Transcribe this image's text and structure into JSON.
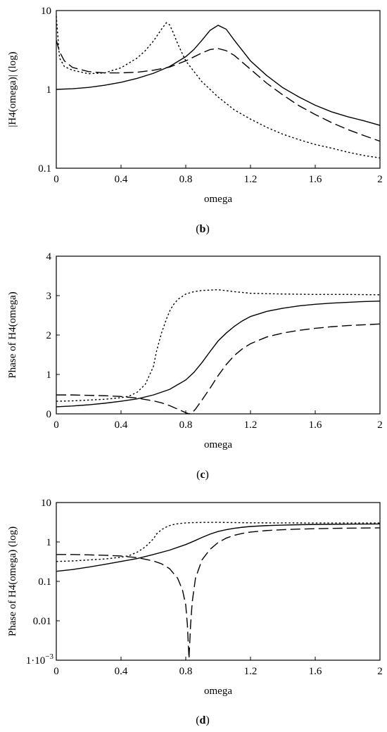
{
  "chart_data": [
    {
      "type": "line",
      "panel_label": "(b)",
      "xlabel": "omega",
      "ylabel": "|H4(omega)| (log)",
      "xlim": [
        0,
        2
      ],
      "ylim": [
        0.1,
        10
      ],
      "yscale": "log",
      "grid": false,
      "xticks": [
        0,
        0.4,
        0.8,
        1.2,
        1.6,
        2
      ],
      "xtick_labels": [
        "0",
        "0.4",
        "0.8",
        "1.2",
        "1.6",
        "2"
      ],
      "yticks": [
        0.1,
        1,
        10
      ],
      "ytick_labels": [
        "0.1",
        "1",
        "10"
      ],
      "series": [
        {
          "style": "solid",
          "x": [
            0,
            0.1,
            0.2,
            0.3,
            0.4,
            0.5,
            0.6,
            0.7,
            0.8,
            0.85,
            0.9,
            0.95,
            1.0,
            1.05,
            1.1,
            1.2,
            1.3,
            1.4,
            1.5,
            1.6,
            1.7,
            1.8,
            1.9,
            2.0
          ],
          "y": [
            1.0,
            1.02,
            1.06,
            1.13,
            1.23,
            1.38,
            1.6,
            1.95,
            2.6,
            3.2,
            4.2,
            5.6,
            6.5,
            5.8,
            4.2,
            2.3,
            1.5,
            1.05,
            0.8,
            0.63,
            0.52,
            0.45,
            0.4,
            0.35
          ]
        },
        {
          "style": "dashed",
          "x": [
            0,
            0.02,
            0.05,
            0.1,
            0.2,
            0.3,
            0.4,
            0.5,
            0.6,
            0.7,
            0.8,
            0.9,
            0.95,
            1.0,
            1.05,
            1.1,
            1.2,
            1.3,
            1.4,
            1.5,
            1.6,
            1.7,
            1.8,
            1.9,
            2.0
          ],
          "y": [
            4.2,
            3.0,
            2.3,
            1.9,
            1.68,
            1.62,
            1.62,
            1.65,
            1.75,
            1.92,
            2.3,
            2.9,
            3.2,
            3.3,
            3.1,
            2.7,
            1.8,
            1.2,
            0.85,
            0.62,
            0.48,
            0.38,
            0.31,
            0.26,
            0.22
          ]
        },
        {
          "style": "dotted",
          "x": [
            0,
            0.02,
            0.05,
            0.1,
            0.2,
            0.3,
            0.4,
            0.5,
            0.55,
            0.6,
            0.65,
            0.68,
            0.7,
            0.72,
            0.75,
            0.8,
            0.9,
            1.0,
            1.1,
            1.2,
            1.3,
            1.4,
            1.5,
            1.6,
            1.7,
            1.8,
            1.9,
            2.0
          ],
          "y": [
            8.5,
            2.5,
            1.95,
            1.75,
            1.58,
            1.62,
            1.88,
            2.5,
            3.1,
            4.1,
            5.8,
            7.0,
            6.6,
            5.4,
            3.8,
            2.3,
            1.25,
            0.8,
            0.55,
            0.42,
            0.33,
            0.27,
            0.23,
            0.2,
            0.18,
            0.16,
            0.145,
            0.135
          ]
        }
      ]
    },
    {
      "type": "line",
      "panel_label": "(c)",
      "xlabel": "omega",
      "ylabel": "Phase of H4(omega)",
      "xlim": [
        0,
        2
      ],
      "ylim": [
        0,
        4
      ],
      "yscale": "linear",
      "grid": false,
      "xticks": [
        0,
        0.4,
        0.8,
        1.2,
        1.6,
        2
      ],
      "xtick_labels": [
        "0",
        "0.4",
        "0.8",
        "1.2",
        "1.6",
        "2"
      ],
      "yticks": [
        0,
        1,
        2,
        3,
        4
      ],
      "ytick_labels": [
        "0",
        "1",
        "2",
        "3",
        "4"
      ],
      "series": [
        {
          "style": "solid",
          "x": [
            0,
            0.1,
            0.2,
            0.3,
            0.4,
            0.5,
            0.6,
            0.7,
            0.8,
            0.85,
            0.9,
            0.95,
            1.0,
            1.05,
            1.1,
            1.15,
            1.2,
            1.3,
            1.4,
            1.5,
            1.6,
            1.7,
            1.8,
            1.9,
            2.0
          ],
          "y": [
            0.18,
            0.2,
            0.23,
            0.27,
            0.32,
            0.38,
            0.48,
            0.62,
            0.86,
            1.05,
            1.3,
            1.58,
            1.85,
            2.05,
            2.22,
            2.36,
            2.47,
            2.6,
            2.68,
            2.74,
            2.78,
            2.81,
            2.83,
            2.85,
            2.86
          ]
        },
        {
          "style": "dashed",
          "x": [
            0,
            0.1,
            0.2,
            0.3,
            0.4,
            0.5,
            0.6,
            0.65,
            0.7,
            0.75,
            0.8,
            0.82,
            0.84,
            0.86,
            0.9,
            0.95,
            1.0,
            1.05,
            1.1,
            1.15,
            1.2,
            1.3,
            1.4,
            1.5,
            1.6,
            1.7,
            1.8,
            1.9,
            2.0
          ],
          "y": [
            0.48,
            0.48,
            0.47,
            0.46,
            0.44,
            0.4,
            0.33,
            0.28,
            0.21,
            0.12,
            0.03,
            0.0,
            0.03,
            0.12,
            0.35,
            0.65,
            0.97,
            1.25,
            1.48,
            1.65,
            1.78,
            1.95,
            2.05,
            2.12,
            2.17,
            2.21,
            2.24,
            2.26,
            2.28
          ]
        },
        {
          "style": "dotted",
          "x": [
            0,
            0.1,
            0.2,
            0.3,
            0.4,
            0.45,
            0.5,
            0.55,
            0.6,
            0.62,
            0.65,
            0.68,
            0.7,
            0.72,
            0.75,
            0.8,
            0.85,
            0.9,
            1.0,
            1.1,
            1.2,
            1.4,
            1.6,
            1.8,
            2.0
          ],
          "y": [
            0.32,
            0.33,
            0.35,
            0.37,
            0.41,
            0.45,
            0.55,
            0.75,
            1.2,
            1.6,
            2.05,
            2.4,
            2.6,
            2.75,
            2.9,
            3.04,
            3.1,
            3.13,
            3.15,
            3.1,
            3.06,
            3.04,
            3.03,
            3.03,
            3.02
          ]
        }
      ]
    },
    {
      "type": "line",
      "panel_label": "(d)",
      "xlabel": "omega",
      "ylabel": "Phase of H4(omega) (log)",
      "xlim": [
        0,
        2
      ],
      "ylim": [
        0.001,
        10
      ],
      "yscale": "log",
      "grid": false,
      "xticks": [
        0,
        0.4,
        0.8,
        1.2,
        1.6,
        2
      ],
      "xtick_labels": [
        "0",
        "0.4",
        "0.8",
        "1.2",
        "1.6",
        "2"
      ],
      "yticks": [
        0.001,
        0.01,
        0.1,
        1,
        10
      ],
      "ytick_labels": [
        "1·10",
        "0.01",
        "0.1",
        "1",
        "10"
      ],
      "ytick_min_exponent": "−3",
      "series": [
        {
          "style": "solid",
          "x": [
            0,
            0.1,
            0.2,
            0.3,
            0.4,
            0.5,
            0.6,
            0.7,
            0.8,
            0.85,
            0.9,
            0.95,
            1.0,
            1.05,
            1.1,
            1.15,
            1.2,
            1.3,
            1.4,
            1.5,
            1.6,
            1.7,
            1.8,
            1.9,
            2.0
          ],
          "y": [
            0.18,
            0.2,
            0.23,
            0.27,
            0.32,
            0.38,
            0.48,
            0.62,
            0.86,
            1.05,
            1.3,
            1.58,
            1.85,
            2.05,
            2.22,
            2.36,
            2.47,
            2.6,
            2.68,
            2.74,
            2.78,
            2.81,
            2.83,
            2.85,
            2.86
          ]
        },
        {
          "style": "dashed",
          "x": [
            0,
            0.1,
            0.2,
            0.3,
            0.4,
            0.5,
            0.6,
            0.65,
            0.7,
            0.75,
            0.78,
            0.8,
            0.81,
            0.82,
            0.83,
            0.84,
            0.86,
            0.9,
            0.95,
            1.0,
            1.05,
            1.1,
            1.15,
            1.2,
            1.3,
            1.4,
            1.5,
            1.6,
            1.7,
            1.8,
            1.9,
            2.0
          ],
          "y": [
            0.48,
            0.48,
            0.47,
            0.46,
            0.44,
            0.4,
            0.33,
            0.28,
            0.21,
            0.12,
            0.06,
            0.025,
            0.008,
            0.0011,
            0.008,
            0.03,
            0.12,
            0.35,
            0.65,
            0.97,
            1.25,
            1.48,
            1.65,
            1.78,
            1.95,
            2.05,
            2.12,
            2.17,
            2.21,
            2.24,
            2.26,
            2.28
          ]
        },
        {
          "style": "dotted",
          "x": [
            0,
            0.1,
            0.2,
            0.3,
            0.4,
            0.45,
            0.5,
            0.55,
            0.6,
            0.62,
            0.65,
            0.68,
            0.7,
            0.72,
            0.75,
            0.8,
            0.85,
            0.9,
            1.0,
            1.1,
            1.2,
            1.4,
            1.6,
            1.8,
            2.0
          ],
          "y": [
            0.32,
            0.33,
            0.35,
            0.37,
            0.41,
            0.45,
            0.55,
            0.75,
            1.2,
            1.6,
            2.05,
            2.4,
            2.6,
            2.75,
            2.9,
            3.04,
            3.1,
            3.13,
            3.15,
            3.1,
            3.06,
            3.04,
            3.03,
            3.03,
            3.02
          ]
        }
      ]
    }
  ]
}
